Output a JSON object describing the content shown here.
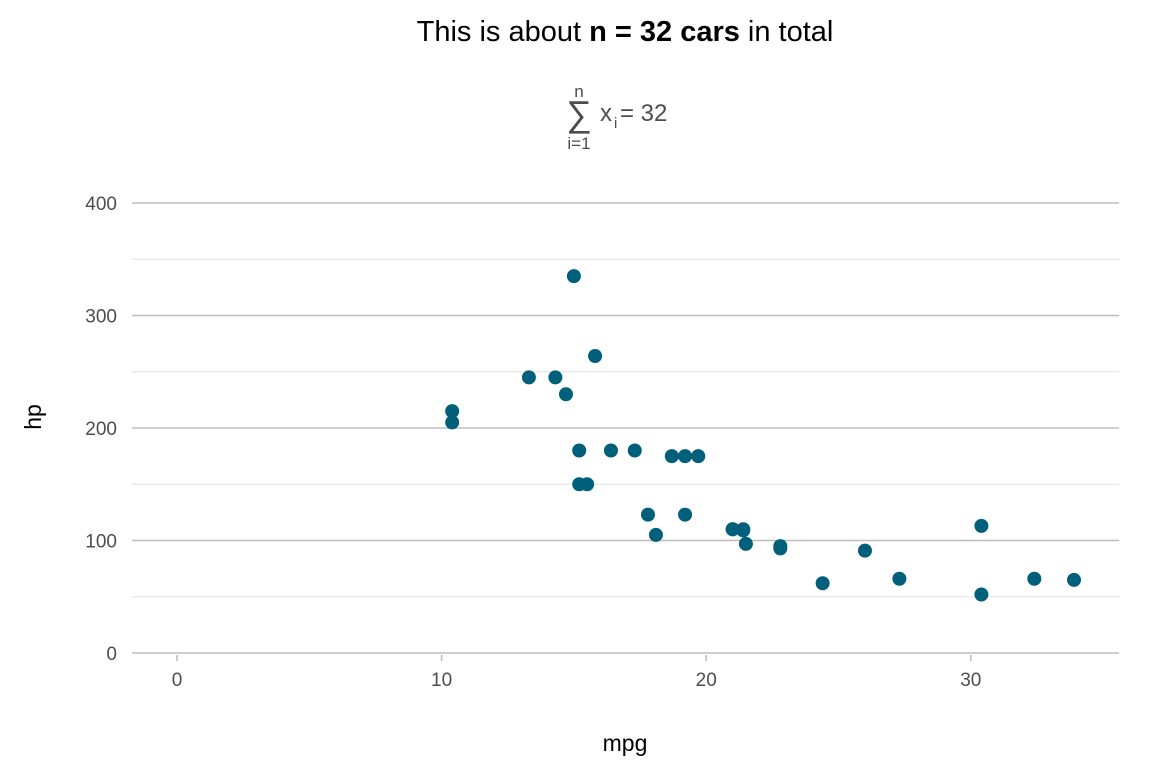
{
  "chart_data": {
    "type": "scatter",
    "title": {
      "prefix": "This is about ",
      "bold": "n = 32 cars",
      "suffix": " in total"
    },
    "subtitle": {
      "sum_upper": "n",
      "sum_lower": "i=1",
      "sum_symbol": "∑",
      "variable": "x",
      "subscript": "i",
      "equation": " = 32"
    },
    "xlabel": "mpg",
    "ylabel": "hp",
    "xlim": [
      -1.7,
      35.6
    ],
    "ylim": [
      0,
      400
    ],
    "x_ticks": [
      0,
      10,
      20,
      30
    ],
    "y_ticks": [
      0,
      100,
      200,
      300,
      400
    ],
    "y_minor_ticks": [
      50,
      150,
      250,
      350
    ],
    "grid": true,
    "legend": "none",
    "point_color": "#005f7b",
    "points": [
      {
        "x": 21.0,
        "y": 110
      },
      {
        "x": 21.0,
        "y": 110
      },
      {
        "x": 22.8,
        "y": 93
      },
      {
        "x": 21.4,
        "y": 110
      },
      {
        "x": 18.7,
        "y": 175
      },
      {
        "x": 18.1,
        "y": 105
      },
      {
        "x": 14.3,
        "y": 245
      },
      {
        "x": 24.4,
        "y": 62
      },
      {
        "x": 22.8,
        "y": 95
      },
      {
        "x": 19.2,
        "y": 123
      },
      {
        "x": 17.8,
        "y": 123
      },
      {
        "x": 16.4,
        "y": 180
      },
      {
        "x": 17.3,
        "y": 180
      },
      {
        "x": 15.2,
        "y": 180
      },
      {
        "x": 10.4,
        "y": 205
      },
      {
        "x": 10.4,
        "y": 215
      },
      {
        "x": 14.7,
        "y": 230
      },
      {
        "x": 32.4,
        "y": 66
      },
      {
        "x": 30.4,
        "y": 52
      },
      {
        "x": 33.9,
        "y": 65
      },
      {
        "x": 21.5,
        "y": 97
      },
      {
        "x": 15.5,
        "y": 150
      },
      {
        "x": 15.2,
        "y": 150
      },
      {
        "x": 13.3,
        "y": 245
      },
      {
        "x": 19.2,
        "y": 175
      },
      {
        "x": 27.3,
        "y": 66
      },
      {
        "x": 26.0,
        "y": 91
      },
      {
        "x": 30.4,
        "y": 113
      },
      {
        "x": 15.8,
        "y": 264
      },
      {
        "x": 19.7,
        "y": 175
      },
      {
        "x": 15.0,
        "y": 335
      },
      {
        "x": 21.4,
        "y": 109
      }
    ]
  }
}
